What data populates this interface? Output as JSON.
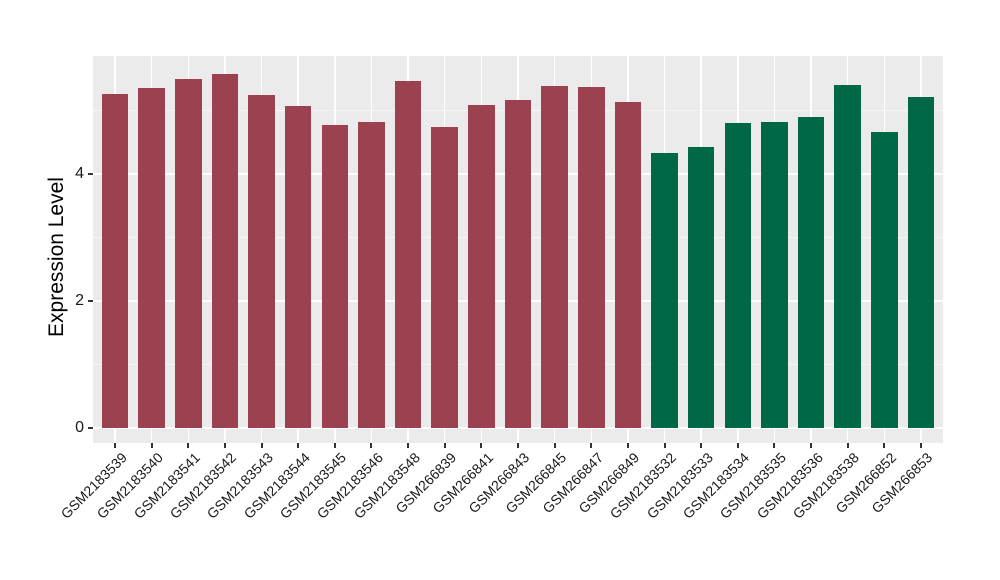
{
  "chart_data": {
    "type": "bar",
    "title": "",
    "xlabel": "",
    "ylabel": "Expression Level",
    "ylim": [
      0,
      5.85
    ],
    "yticks_major": [
      0,
      2,
      4
    ],
    "yticks_minor": [
      1,
      3,
      5
    ],
    "grid": "on",
    "legend": "none",
    "panel_bg": "#EBEBEB",
    "grid_major_color": "#FFFFFF",
    "grid_minor_color": "#F5F5F5",
    "tick_color": "#333333",
    "axis_text_color": "#1A1A1A",
    "bar_groups": [
      {
        "name": "red-group",
        "color": "#9C4150"
      },
      {
        "name": "green-group",
        "color": "#006747"
      }
    ],
    "bars": [
      {
        "label": "GSM2183539",
        "value": 5.26,
        "group": 0
      },
      {
        "label": "GSM2183540",
        "value": 5.35,
        "group": 0
      },
      {
        "label": "GSM2183541",
        "value": 5.49,
        "group": 0
      },
      {
        "label": "GSM2183542",
        "value": 5.57,
        "group": 0
      },
      {
        "label": "GSM2183543",
        "value": 5.23,
        "group": 0
      },
      {
        "label": "GSM2183544",
        "value": 5.06,
        "group": 0
      },
      {
        "label": "GSM2183545",
        "value": 4.77,
        "group": 0
      },
      {
        "label": "GSM2183546",
        "value": 4.82,
        "group": 0
      },
      {
        "label": "GSM2183548",
        "value": 5.45,
        "group": 0
      },
      {
        "label": "GSM266839",
        "value": 4.73,
        "group": 0
      },
      {
        "label": "GSM266841",
        "value": 5.08,
        "group": 0
      },
      {
        "label": "GSM266843",
        "value": 5.16,
        "group": 0
      },
      {
        "label": "GSM266845",
        "value": 5.38,
        "group": 0
      },
      {
        "label": "GSM266847",
        "value": 5.37,
        "group": 0
      },
      {
        "label": "GSM266849",
        "value": 5.13,
        "group": 0
      },
      {
        "label": "GSM2183532",
        "value": 4.33,
        "group": 1
      },
      {
        "label": "GSM2183533",
        "value": 4.42,
        "group": 1
      },
      {
        "label": "GSM2183534",
        "value": 4.8,
        "group": 1
      },
      {
        "label": "GSM2183535",
        "value": 4.82,
        "group": 1
      },
      {
        "label": "GSM2183536",
        "value": 4.89,
        "group": 1
      },
      {
        "label": "GSM2183538",
        "value": 5.39,
        "group": 1
      },
      {
        "label": "GSM266852",
        "value": 4.66,
        "group": 1
      },
      {
        "label": "GSM266853",
        "value": 5.2,
        "group": 1
      }
    ]
  }
}
